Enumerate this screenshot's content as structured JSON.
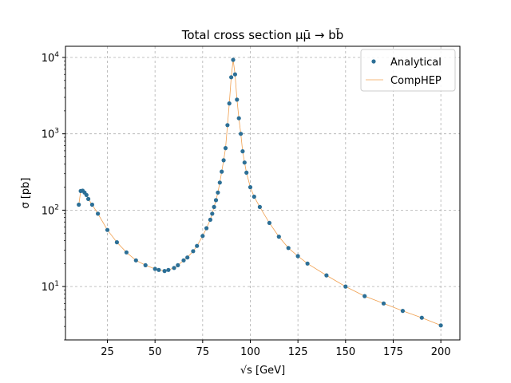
{
  "chart_data": {
    "type": "scatter",
    "title": "Total cross section μμ̄ → bb̄",
    "xlabel": "√s [GeV]",
    "ylabel": "σ [pb]",
    "xlim": [
      3,
      210
    ],
    "ylim": [
      2,
      14000
    ],
    "yscale": "log",
    "grid": true,
    "legend_position": "top-right",
    "xticks": [
      25,
      50,
      75,
      100,
      125,
      150,
      175,
      200
    ],
    "yticks": [
      {
        "value": 10,
        "base": "10",
        "exp": "1"
      },
      {
        "value": 100,
        "base": "10",
        "exp": "2"
      },
      {
        "value": 1000,
        "base": "10",
        "exp": "3"
      },
      {
        "value": 10000,
        "base": "10",
        "exp": "4"
      }
    ],
    "colors": {
      "analytical": "#2c6f96",
      "comphep": "#f0a050"
    },
    "series": [
      {
        "name": "Analytical",
        "style": "markers",
        "x": [
          10,
          11,
          12,
          13,
          14,
          15,
          17,
          20,
          25,
          30,
          35,
          40,
          45,
          50,
          52,
          55,
          57,
          60,
          62,
          65,
          67,
          70,
          72,
          75,
          77,
          79,
          80,
          81,
          82,
          83,
          84,
          85,
          86,
          87,
          88,
          89,
          90,
          91,
          92,
          93,
          94,
          95,
          96,
          97,
          98,
          100,
          102,
          105,
          110,
          115,
          120,
          125,
          130,
          140,
          150,
          160,
          170,
          180,
          190,
          200
        ],
        "y": [
          118,
          178,
          180,
          170,
          158,
          140,
          118,
          90,
          55,
          38,
          28,
          22,
          19,
          17,
          16.5,
          16,
          16.5,
          17.5,
          19,
          22,
          24,
          29,
          34,
          46,
          58,
          75,
          90,
          110,
          135,
          170,
          230,
          320,
          450,
          650,
          1300,
          2500,
          5500,
          9300,
          6000,
          2800,
          1600,
          1000,
          590,
          420,
          310,
          200,
          150,
          110,
          68,
          45,
          32,
          25,
          20,
          14,
          10,
          7.5,
          6,
          4.8,
          3.9,
          3.1
        ]
      },
      {
        "name": "CompHEP",
        "style": "line",
        "x": [
          10,
          11,
          12,
          13,
          14,
          15,
          17,
          20,
          25,
          30,
          35,
          40,
          45,
          50,
          52,
          55,
          57,
          60,
          62,
          65,
          67,
          70,
          72,
          75,
          77,
          79,
          80,
          81,
          82,
          83,
          84,
          85,
          86,
          87,
          88,
          89,
          90,
          91,
          92,
          93,
          94,
          95,
          96,
          97,
          98,
          100,
          102,
          105,
          110,
          115,
          120,
          125,
          130,
          140,
          150,
          160,
          170,
          180,
          190,
          200
        ],
        "y": [
          118,
          178,
          180,
          170,
          158,
          140,
          118,
          90,
          55,
          38,
          28,
          22,
          19,
          17,
          16.5,
          16,
          16.5,
          17.5,
          19,
          22,
          24,
          29,
          34,
          46,
          58,
          75,
          90,
          110,
          135,
          170,
          230,
          320,
          450,
          650,
          1300,
          2500,
          5500,
          9300,
          6000,
          2800,
          1600,
          1000,
          590,
          420,
          310,
          200,
          150,
          110,
          68,
          45,
          32,
          25,
          20,
          14,
          10,
          7.5,
          6,
          4.8,
          3.9,
          3.1
        ]
      }
    ]
  }
}
